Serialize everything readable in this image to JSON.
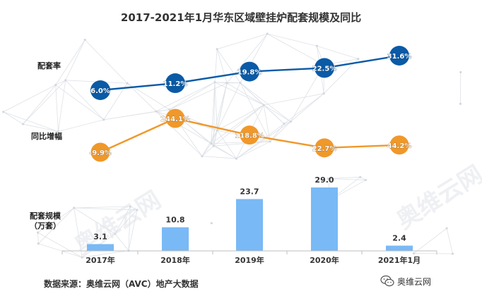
{
  "title": "2017-2021年1月华东区域壁挂炉配套规模及同比",
  "row_labels": {
    "rate": "配套率",
    "growth": "同比增幅",
    "scale_line1": "配套规模",
    "scale_line2": "（万套）"
  },
  "source": "数据来源：奥维云网（AVC）地产大数据",
  "wechat": "奥维云网",
  "watermark": "奥维云网",
  "colors": {
    "rate": "#0a5aa6",
    "growth": "#f0982a",
    "bar": "#79b9f5"
  },
  "chart_data": {
    "type": "bar",
    "categories": [
      "2017年",
      "2018年",
      "2019年",
      "2020年",
      "2021年1月"
    ],
    "series": [
      {
        "name": "配套规模（万套）",
        "type": "bar",
        "values": [
          3.1,
          10.8,
          23.7,
          29.0,
          2.4
        ],
        "labels": [
          "3.1",
          "10.8",
          "23.7",
          "29.0",
          "2.4"
        ]
      },
      {
        "name": "配套率",
        "type": "line",
        "values": [
          6.0,
          11.2,
          19.8,
          22.5,
          31.6
        ],
        "labels": [
          "6.0%",
          "11.2%",
          "19.8%",
          "22.5%",
          "31.6%"
        ]
      },
      {
        "name": "同比增幅",
        "type": "line",
        "values": [
          -9.9,
          244.1,
          118.8,
          22.7,
          44.2
        ],
        "labels": [
          "-9.9%",
          "244.1%",
          "118.8%",
          "22.7%",
          "44.2%"
        ]
      }
    ],
    "title": "2017-2021年1月华东区域壁挂炉配套规模及同比",
    "xlabel": "",
    "ylabel": "配套规模（万套）",
    "legend": "left"
  }
}
